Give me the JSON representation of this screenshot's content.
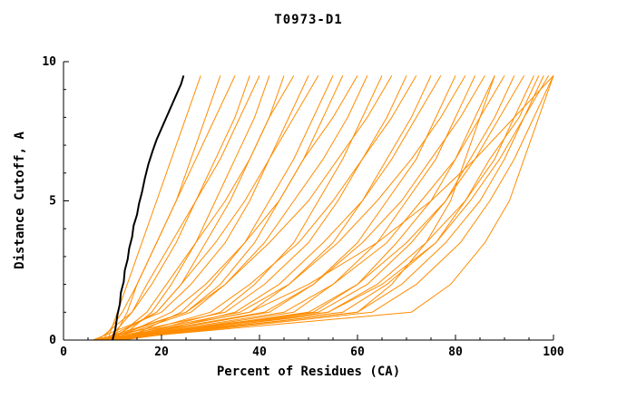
{
  "colors": {
    "model_line": "#ff8c00",
    "reference_line": "#000000",
    "axis": "#000000",
    "background": "#ffffff"
  },
  "chart_data": {
    "type": "line",
    "title": "T0973-D1",
    "xlabel": "Percent of Residues (CA)",
    "ylabel": "Distance Cutoff, A",
    "xlim": [
      0,
      100
    ],
    "ylim": [
      0,
      10
    ],
    "x_major_ticks": [
      0,
      20,
      40,
      60,
      80,
      100
    ],
    "y_major_ticks": [
      0,
      5,
      10
    ],
    "x_minor_step": 5,
    "y_minor_step": 1,
    "grid": false,
    "legend": "none",
    "y_levels": [
      0,
      1,
      2,
      3.5,
      5,
      6.5,
      8,
      9.5
    ],
    "series": [
      {
        "role": "model",
        "color": "#ff8c00",
        "width": 1,
        "x": [
          9,
          11,
          13,
          16,
          19,
          22,
          25,
          28
        ]
      },
      {
        "role": "model",
        "color": "#ff8c00",
        "width": 1,
        "x": [
          8,
          12,
          15,
          19,
          23,
          26,
          29,
          32
        ]
      },
      {
        "role": "model",
        "color": "#ff8c00",
        "width": 1,
        "x": [
          10,
          13,
          15,
          19,
          23,
          27,
          31,
          35
        ]
      },
      {
        "role": "model",
        "color": "#ff8c00",
        "width": 1,
        "x": [
          7,
          14,
          18,
          23,
          27,
          31,
          35,
          38
        ]
      },
      {
        "role": "model",
        "color": "#ff8c00",
        "width": 1,
        "x": [
          9,
          14,
          17,
          22,
          27,
          32,
          36,
          40
        ]
      },
      {
        "role": "model",
        "color": "#ff8c00",
        "width": 1,
        "x": [
          11,
          18,
          22,
          27,
          31,
          35,
          39,
          42
        ]
      },
      {
        "role": "model",
        "color": "#ff8c00",
        "width": 1,
        "x": [
          8,
          19,
          24,
          29,
          34,
          38,
          42,
          45
        ]
      },
      {
        "role": "model",
        "color": "#ff8c00",
        "width": 1,
        "x": [
          10,
          17,
          21,
          27,
          33,
          38,
          42,
          47
        ]
      },
      {
        "role": "model",
        "color": "#ff8c00",
        "width": 1,
        "x": [
          6,
          20,
          26,
          33,
          38,
          42,
          46,
          50
        ]
      },
      {
        "role": "model",
        "color": "#ff8c00",
        "width": 1,
        "x": [
          9,
          19,
          24,
          31,
          37,
          42,
          47,
          52
        ]
      },
      {
        "role": "model",
        "color": "#ff8c00",
        "width": 1,
        "x": [
          12,
          24,
          30,
          37,
          42,
          47,
          51,
          55
        ]
      },
      {
        "role": "model",
        "color": "#ff8c00",
        "width": 1,
        "x": [
          7,
          25,
          32,
          39,
          44,
          49,
          53,
          57
        ]
      },
      {
        "role": "model",
        "color": "#ff8c00",
        "width": 1,
        "x": [
          10,
          22,
          29,
          37,
          44,
          49,
          55,
          60
        ]
      },
      {
        "role": "model",
        "color": "#ff8c00",
        "width": 1,
        "x": [
          8,
          25,
          33,
          41,
          47,
          53,
          58,
          62
        ]
      },
      {
        "role": "model",
        "color": "#ff8c00",
        "width": 1,
        "x": [
          11,
          32,
          39,
          47,
          52,
          57,
          61,
          65
        ]
      },
      {
        "role": "model",
        "color": "#ff8c00",
        "width": 1,
        "x": [
          9,
          26,
          33,
          42,
          50,
          56,
          62,
          67
        ]
      },
      {
        "role": "model",
        "color": "#ff8c00",
        "width": 1,
        "x": [
          6,
          33,
          41,
          50,
          56,
          61,
          66,
          70
        ]
      },
      {
        "role": "model",
        "color": "#ff8c00",
        "width": 1,
        "x": [
          10,
          30,
          38,
          48,
          55,
          61,
          67,
          72
        ]
      },
      {
        "role": "model",
        "color": "#ff8c00",
        "width": 1,
        "x": [
          8,
          38,
          46,
          55,
          61,
          66,
          71,
          75
        ]
      },
      {
        "role": "model",
        "color": "#ff8c00",
        "width": 1,
        "x": [
          12,
          35,
          44,
          53,
          61,
          67,
          72,
          77
        ]
      },
      {
        "role": "model",
        "color": "#ff8c00",
        "width": 1,
        "x": [
          9,
          42,
          51,
          60,
          66,
          72,
          76,
          80
        ]
      },
      {
        "role": "model",
        "color": "#ff8c00",
        "width": 1,
        "x": [
          7,
          36,
          46,
          56,
          64,
          71,
          77,
          82
        ]
      },
      {
        "role": "model",
        "color": "#ff8c00",
        "width": 1,
        "x": [
          10,
          47,
          55,
          64,
          70,
          76,
          80,
          84
        ]
      },
      {
        "role": "model",
        "color": "#ff8c00",
        "width": 1,
        "x": [
          8,
          41,
          51,
          61,
          69,
          75,
          81,
          86
        ]
      },
      {
        "role": "model",
        "color": "#ff8c00",
        "width": 1,
        "x": [
          11,
          51,
          60,
          68,
          75,
          80,
          84,
          88
        ]
      },
      {
        "role": "model",
        "color": "#ff8c00",
        "width": 1,
        "x": [
          9,
          45,
          55,
          66,
          73,
          80,
          85,
          90
        ]
      },
      {
        "role": "model",
        "color": "#ff8c00",
        "width": 1,
        "x": [
          6,
          52,
          62,
          71,
          78,
          83,
          88,
          92
        ]
      },
      {
        "role": "model",
        "color": "#ff8c00",
        "width": 1,
        "x": [
          10,
          50,
          60,
          70,
          78,
          84,
          89,
          94
        ]
      },
      {
        "role": "model",
        "color": "#ff8c00",
        "width": 1,
        "x": [
          8,
          57,
          66,
          76,
          82,
          88,
          92,
          96
        ]
      },
      {
        "role": "model",
        "color": "#ff8c00",
        "width": 1,
        "x": [
          12,
          54,
          64,
          74,
          82,
          87,
          93,
          97
        ]
      },
      {
        "role": "model",
        "color": "#ff8c00",
        "width": 1,
        "x": [
          9,
          60,
          69,
          78,
          85,
          90,
          94,
          98
        ]
      },
      {
        "role": "model",
        "color": "#ff8c00",
        "width": 1,
        "x": [
          7,
          54,
          65,
          76,
          83,
          89,
          94,
          99
        ]
      },
      {
        "role": "model",
        "color": "#ff8c00",
        "width": 1,
        "x": [
          10,
          63,
          72,
          81,
          87,
          92,
          96,
          100
        ]
      },
      {
        "role": "model",
        "color": "#ff8c00",
        "width": 1,
        "x": [
          8,
          38,
          50,
          64,
          75,
          84,
          92,
          100
        ]
      },
      {
        "role": "model",
        "color": "#ff8c00",
        "width": 1,
        "x": [
          8,
          71,
          79,
          86,
          91,
          94,
          97,
          100
        ]
      },
      {
        "role": "model",
        "color": "#ff8c00",
        "width": 1,
        "x": [
          10,
          60,
          67,
          74,
          79,
          82,
          85,
          88
        ]
      },
      {
        "role": "reference",
        "color": "#000000",
        "width": 2,
        "points": [
          [
            10,
            0
          ],
          [
            10.6,
            0.4
          ],
          [
            11,
            0.9
          ],
          [
            11.5,
            1.3
          ],
          [
            11.7,
            1.7
          ],
          [
            12.3,
            2.1
          ],
          [
            12.5,
            2.5
          ],
          [
            13.1,
            2.9
          ],
          [
            13.4,
            3.3
          ],
          [
            14,
            3.7
          ],
          [
            14.3,
            4.1
          ],
          [
            15,
            4.5
          ],
          [
            15.4,
            4.9
          ],
          [
            16,
            5.3
          ],
          [
            16.6,
            5.8
          ],
          [
            17.3,
            6.3
          ],
          [
            18.2,
            6.8
          ],
          [
            19,
            7.2
          ],
          [
            20,
            7.6
          ],
          [
            21,
            8.0
          ],
          [
            22,
            8.4
          ],
          [
            23,
            8.8
          ],
          [
            24,
            9.2
          ],
          [
            24.5,
            9.5
          ]
        ]
      }
    ]
  }
}
